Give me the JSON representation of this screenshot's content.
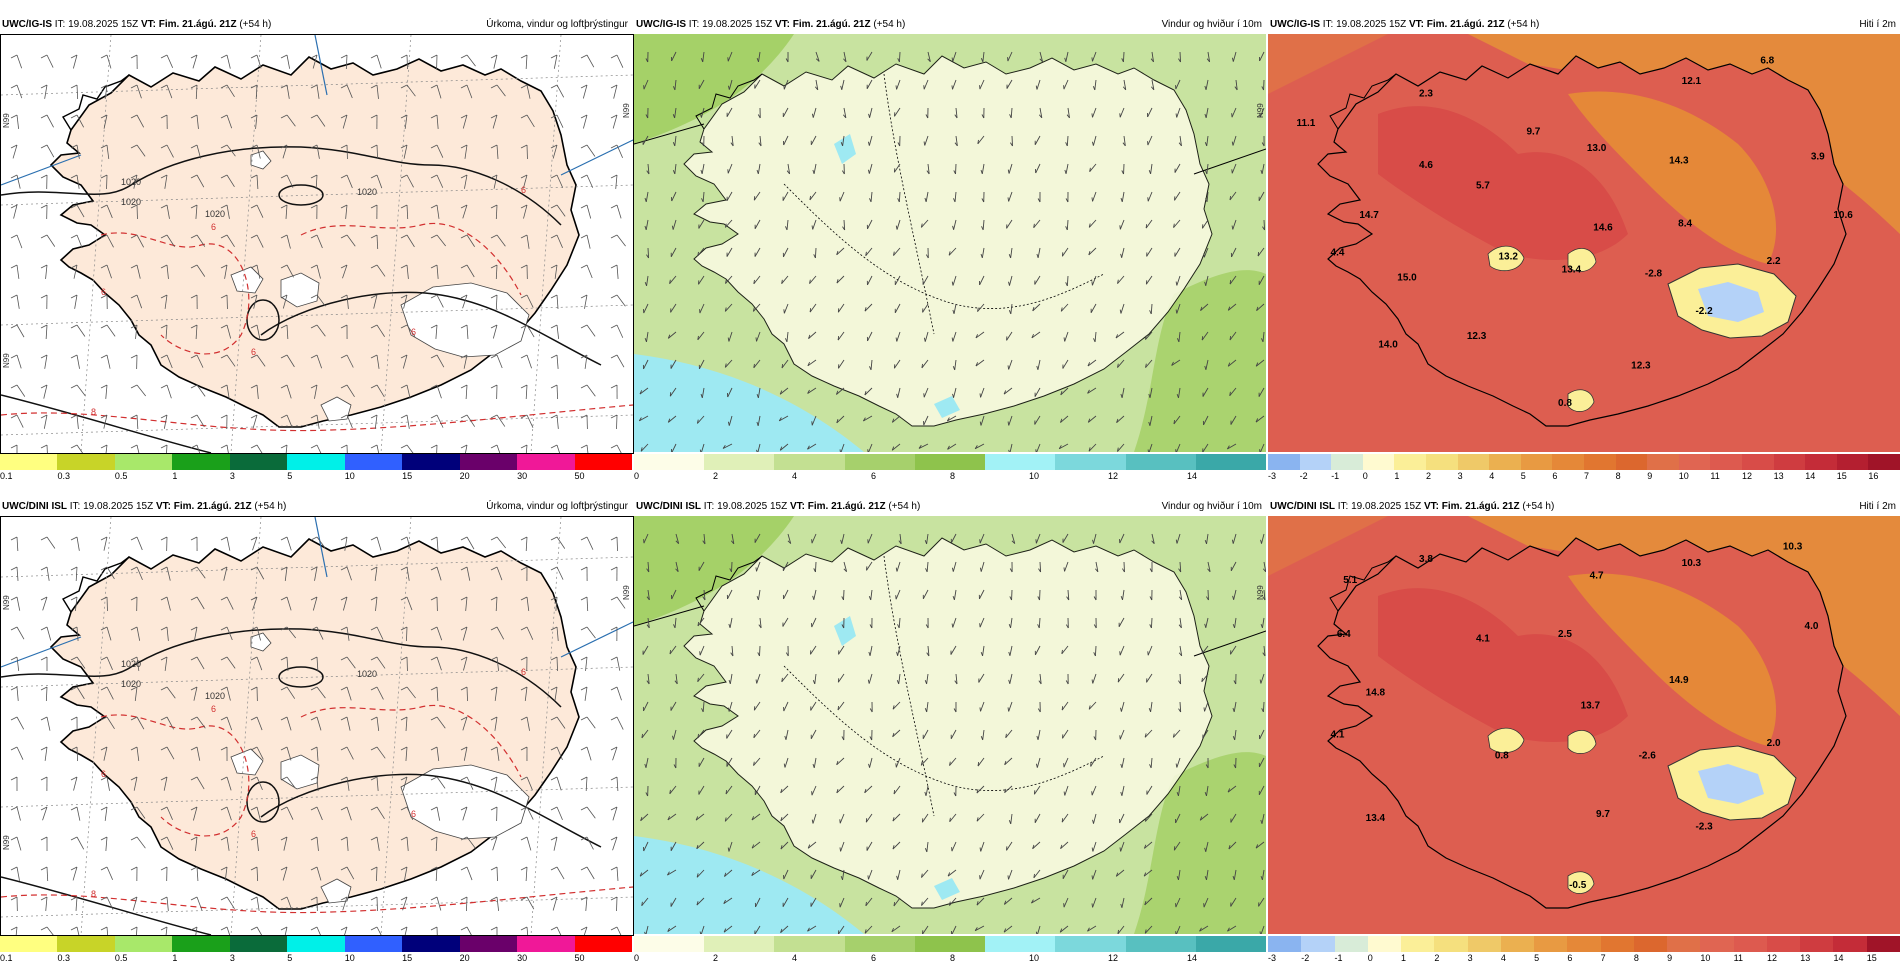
{
  "rows": [
    {
      "model": "UWC/IG-IS",
      "it_label": "IT:",
      "it_value": "19.08.2025 15Z",
      "vt_label": "VT:",
      "vt_value": "Fim. 21.ágú. 21Z",
      "lead": "(+54 h)",
      "temps": [
        {
          "v": "11.1",
          "lx": 0.06,
          "ly": 0.22
        },
        {
          "v": "2.3",
          "lx": 0.25,
          "ly": 0.15
        },
        {
          "v": "9.7",
          "lx": 0.42,
          "ly": 0.24
        },
        {
          "v": "12.1",
          "lx": 0.67,
          "ly": 0.12
        },
        {
          "v": "6.8",
          "lx": 0.79,
          "ly": 0.07
        },
        {
          "v": "4.6",
          "lx": 0.25,
          "ly": 0.32
        },
        {
          "v": "13.0",
          "lx": 0.52,
          "ly": 0.28
        },
        {
          "v": "14.3",
          "lx": 0.65,
          "ly": 0.31
        },
        {
          "v": "3.9",
          "lx": 0.87,
          "ly": 0.3
        },
        {
          "v": "5.7",
          "lx": 0.34,
          "ly": 0.37
        },
        {
          "v": "14.7",
          "lx": 0.16,
          "ly": 0.44
        },
        {
          "v": "14.6",
          "lx": 0.53,
          "ly": 0.47
        },
        {
          "v": "8.4",
          "lx": 0.66,
          "ly": 0.46
        },
        {
          "v": "10.6",
          "lx": 0.91,
          "ly": 0.44
        },
        {
          "v": "4.4",
          "lx": 0.11,
          "ly": 0.53
        },
        {
          "v": "13.2",
          "lx": 0.38,
          "ly": 0.54
        },
        {
          "v": "13.4",
          "lx": 0.48,
          "ly": 0.57
        },
        {
          "v": "-2.8",
          "lx": 0.61,
          "ly": 0.58
        },
        {
          "v": "2.2",
          "lx": 0.8,
          "ly": 0.55
        },
        {
          "v": "15.0",
          "lx": 0.22,
          "ly": 0.59
        },
        {
          "v": "-2.2",
          "lx": 0.69,
          "ly": 0.67
        },
        {
          "v": "12.3",
          "lx": 0.33,
          "ly": 0.73
        },
        {
          "v": "14.0",
          "lx": 0.19,
          "ly": 0.75
        },
        {
          "v": "12.3",
          "lx": 0.59,
          "ly": 0.8
        },
        {
          "v": "0.8",
          "lx": 0.47,
          "ly": 0.89
        }
      ]
    },
    {
      "model": "UWC/DINI ISL",
      "it_label": "IT:",
      "it_value": "19.08.2025 15Z",
      "vt_label": "VT:",
      "vt_value": "Fim. 21.ágú. 21Z",
      "lead": "(+54 h)",
      "temps": [
        {
          "v": "3.8",
          "lx": 0.25,
          "ly": 0.11
        },
        {
          "v": "10.3",
          "lx": 0.67,
          "ly": 0.12
        },
        {
          "v": "10.3",
          "lx": 0.83,
          "ly": 0.08
        },
        {
          "v": "5.1",
          "lx": 0.13,
          "ly": 0.16
        },
        {
          "v": "4.7",
          "lx": 0.52,
          "ly": 0.15
        },
        {
          "v": "6.4",
          "lx": 0.12,
          "ly": 0.29
        },
        {
          "v": "4.1",
          "lx": 0.34,
          "ly": 0.3
        },
        {
          "v": "2.5",
          "lx": 0.47,
          "ly": 0.29
        },
        {
          "v": "4.0",
          "lx": 0.86,
          "ly": 0.27
        },
        {
          "v": "14.9",
          "lx": 0.65,
          "ly": 0.4
        },
        {
          "v": "14.8",
          "lx": 0.17,
          "ly": 0.43
        },
        {
          "v": "13.7",
          "lx": 0.51,
          "ly": 0.46
        },
        {
          "v": "4.1",
          "lx": 0.11,
          "ly": 0.53
        },
        {
          "v": "0.8",
          "lx": 0.37,
          "ly": 0.58
        },
        {
          "v": "-2.6",
          "lx": 0.6,
          "ly": 0.58
        },
        {
          "v": "2.0",
          "lx": 0.8,
          "ly": 0.55
        },
        {
          "v": "9.7",
          "lx": 0.53,
          "ly": 0.72
        },
        {
          "v": "-2.3",
          "lx": 0.69,
          "ly": 0.75
        },
        {
          "v": "13.4",
          "lx": 0.17,
          "ly": 0.73
        },
        {
          "v": "-0.5",
          "lx": 0.49,
          "ly": 0.89
        }
      ]
    }
  ],
  "panel_titles": [
    "Úrkoma, vindur og loftþrýstingur",
    "Vindur og hviður í 10m",
    "Hiti í 2m"
  ],
  "grid_labels": {
    "left": "N99",
    "right": "N99"
  },
  "isobar_labels": [
    "1020",
    "1020",
    "1020",
    "1020"
  ],
  "precip_labels": [
    "6",
    "6",
    "6",
    "6",
    "6",
    "8"
  ],
  "colorbars": {
    "precip": {
      "ticks": [
        "0.1",
        "0.3",
        "0.5",
        "1",
        "3",
        "5",
        "10",
        "15",
        "20",
        "30",
        "50"
      ],
      "colors": [
        "#ffff80",
        "#c8d428",
        "#a8e86a",
        "#1aa01a",
        "#0a6b3a",
        "#00f0e8",
        "#3060ff",
        "#00007a",
        "#6a006a",
        "#f01898",
        "#ff0000"
      ]
    },
    "wind": {
      "ticks": [
        "0",
        "2",
        "4",
        "6",
        "8",
        "10",
        "12",
        "14"
      ],
      "colors": [
        "#fdfde8",
        "#e0f0b8",
        "#c3e092",
        "#a6d06c",
        "#8ec34c",
        "#a2f2f6",
        "#7cd8dc",
        "#58c0c0",
        "#3aa8a8"
      ]
    },
    "temp_top": {
      "ticks": [
        "-3",
        "-2",
        "-1",
        "0",
        "1",
        "2",
        "3",
        "4",
        "5",
        "6",
        "7",
        "8",
        "9",
        "10",
        "11",
        "12",
        "13",
        "14",
        "15",
        "16"
      ],
      "colors": [
        "#8ab4f0",
        "#b4d2f8",
        "#d8ecd8",
        "#fffad0",
        "#fbef98",
        "#f5e07e",
        "#efc968",
        "#ebb050",
        "#e89a42",
        "#e58838",
        "#e17630",
        "#dc672e",
        "#e07048",
        "#e06552",
        "#dd5a4f",
        "#d84c48",
        "#cf3c40",
        "#c42c38",
        "#b41f30",
        "#a01428"
      ]
    },
    "temp_bottom": {
      "ticks": [
        "-3",
        "-2",
        "-1",
        "0",
        "1",
        "2",
        "3",
        "4",
        "5",
        "6",
        "7",
        "8",
        "9",
        "10",
        "11",
        "12",
        "13",
        "14",
        "15"
      ],
      "colors": [
        "#8ab4f0",
        "#b4d2f8",
        "#d8ecd8",
        "#fffad0",
        "#fbef98",
        "#f5e07e",
        "#efc968",
        "#ebb050",
        "#e89a42",
        "#e58838",
        "#e17630",
        "#dc672e",
        "#e07048",
        "#e06552",
        "#dd5a4f",
        "#d84c48",
        "#cf3c40",
        "#c42c38",
        "#a01428"
      ]
    }
  },
  "colors": {
    "land": "#fde9d9",
    "ocean_temp": "#dd5e50",
    "wind_low": "#fbfbe4",
    "wind_mid": "#c8e3a0",
    "wind_high": "#9ccc5a",
    "ocean_wind_cyan": "#9ee9f2",
    "isobar": "#111111",
    "precip_contour": "#d23030",
    "grid": "#888888"
  }
}
